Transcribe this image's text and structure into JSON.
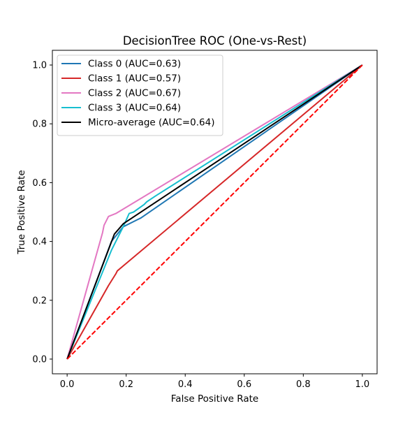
{
  "chart_data": {
    "type": "line",
    "title": "DecisionTree ROC (One-vs-Rest)",
    "xlabel": "False Positive Rate",
    "ylabel": "True Positive Rate",
    "xlim": [
      -0.05,
      1.05
    ],
    "ylim": [
      -0.05,
      1.05
    ],
    "xticks": [
      "0.0",
      "0.2",
      "0.4",
      "0.6",
      "0.8",
      "1.0"
    ],
    "yticks": [
      "0.0",
      "0.2",
      "0.4",
      "0.6",
      "0.8",
      "1.0"
    ],
    "grid": false,
    "legend_position": "upper-left",
    "series": [
      {
        "name": "Class 0 (AUC=0.63)",
        "color": "#1f77b4",
        "style": "solid",
        "x": [
          0.0,
          0.15,
          0.19,
          0.24,
          0.25,
          1.0
        ],
        "y": [
          0.0,
          0.4,
          0.45,
          0.475,
          0.48,
          1.0
        ]
      },
      {
        "name": "Class 1 (AUC=0.57)",
        "color": "#d62728",
        "style": "solid",
        "x": [
          0.0,
          0.14,
          0.165,
          0.17,
          1.0
        ],
        "y": [
          0.0,
          0.25,
          0.29,
          0.3,
          1.0
        ]
      },
      {
        "name": "Class 2 (AUC=0.67)",
        "color": "#e377c2",
        "style": "solid",
        "x": [
          0.0,
          0.12,
          0.125,
          0.14,
          0.165,
          1.0
        ],
        "y": [
          0.0,
          0.43,
          0.455,
          0.485,
          0.495,
          1.0
        ]
      },
      {
        "name": "Class 3 (AUC=0.64)",
        "color": "#17becf",
        "style": "solid",
        "x": [
          0.0,
          0.15,
          0.19,
          0.21,
          0.225,
          0.26,
          0.27,
          0.3,
          1.0
        ],
        "y": [
          0.0,
          0.37,
          0.45,
          0.495,
          0.5,
          0.525,
          0.535,
          0.555,
          1.0
        ]
      },
      {
        "name": "Micro-average (AUC=0.64)",
        "color": "#000000",
        "style": "solid",
        "x": [
          0.0,
          0.16,
          0.19,
          1.0
        ],
        "y": [
          0.0,
          0.425,
          0.46,
          1.0
        ]
      }
    ],
    "reference_line": {
      "color": "#ff0000",
      "style": "dashed",
      "x": [
        0.0,
        1.0
      ],
      "y": [
        0.0,
        1.0
      ]
    }
  }
}
